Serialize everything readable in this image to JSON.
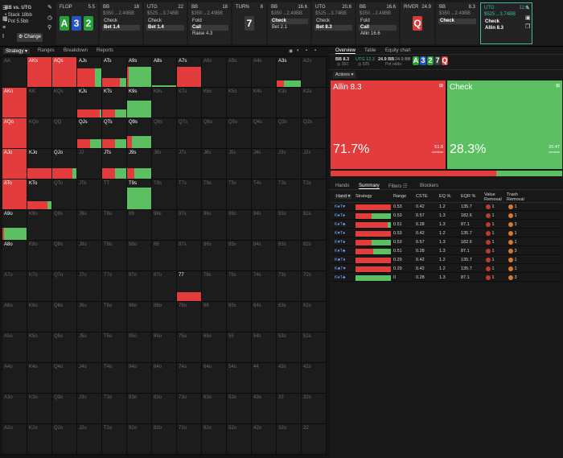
{
  "header": {
    "matchup": "BB vs. UTG",
    "stack": "• Stack 18bb",
    "pot": "• Pot 5.5bb",
    "change_label": "Change",
    "streets": [
      {
        "pos": "FLOP",
        "size": "5.5",
        "info": ""
      },
      {
        "pos": "BB",
        "size": "18",
        "info": "$350→2.49BB",
        "actions": [
          "Check",
          "Bet 1.4"
        ],
        "sel": 1
      },
      {
        "pos": "UTG",
        "size": "22",
        "info": "$525→3.74BB",
        "actions": [
          "Check",
          "Bet 1.4"
        ],
        "sel": 1
      },
      {
        "pos": "BB",
        "size": "18",
        "info": "$350→2.49BB",
        "actions": [
          "Fold",
          "Call",
          "Raise 4.3"
        ],
        "sel": 1
      },
      {
        "pos": "TURN",
        "size": "8",
        "info": ""
      },
      {
        "pos": "BB",
        "size": "16.6",
        "info": "$350→2.49BB",
        "actions": [
          "Check",
          "Bet 2.1"
        ],
        "sel": 0
      },
      {
        "pos": "UTG",
        "size": "20.6",
        "info": "$525→3.74BB",
        "actions": [
          "Check",
          "Bet 8.3"
        ],
        "sel": 1
      },
      {
        "pos": "BB",
        "size": "16.6",
        "info": "$350→2.49BB",
        "actions": [
          "Fold",
          "Call",
          "Allin 16.6"
        ],
        "sel": 1
      },
      {
        "pos": "RIVER",
        "size": "24.9",
        "info": ""
      },
      {
        "pos": "BB",
        "size": "8.3",
        "info": "$350→2.49BB",
        "actions": [
          "Check"
        ],
        "sel": 0
      },
      {
        "pos": "UTG",
        "size": "12.3",
        "info": "$525→3.74BB",
        "actions": [
          "Check",
          "Allin 8.3"
        ],
        "sel": -1
      }
    ],
    "flop_cards": [
      "A",
      "3",
      "2"
    ],
    "turn_card": "7",
    "river_card": "Q"
  },
  "left_tabs": [
    "Strategy",
    "Ranges",
    "Breakdown",
    "Reports"
  ],
  "grid": {
    "hands": [
      [
        "AA",
        "AKs",
        "AQs",
        "AJs",
        "ATs",
        "A9s",
        "A8s",
        "A7s",
        "A6s",
        "A5s",
        "A4s",
        "A3s",
        "A2s"
      ],
      [
        "AKo",
        "KK",
        "KQs",
        "KJs",
        "KTs",
        "K9s",
        "K8s",
        "K7s",
        "K6s",
        "K5s",
        "K4s",
        "K3s",
        "K2s"
      ],
      [
        "AQo",
        "KQo",
        "QQ",
        "QJs",
        "QTs",
        "Q9s",
        "Q8s",
        "Q7s",
        "Q6s",
        "Q5s",
        "Q4s",
        "Q3s",
        "Q2s"
      ],
      [
        "AJo",
        "KJo",
        "QJo",
        "JJ",
        "JTs",
        "J9s",
        "J8s",
        "J7s",
        "J6s",
        "J5s",
        "J4s",
        "J3s",
        "J2s"
      ],
      [
        "ATo",
        "KTo",
        "QTo",
        "JTo",
        "TT",
        "T9s",
        "T8s",
        "T7s",
        "T6s",
        "T5s",
        "T4s",
        "T3s",
        "T2s"
      ],
      [
        "A9o",
        "K9o",
        "Q9o",
        "J9o",
        "T9o",
        "99",
        "98s",
        "97s",
        "96s",
        "95s",
        "94s",
        "93s",
        "92s"
      ],
      [
        "A8o",
        "K8o",
        "Q8o",
        "J8o",
        "T8o",
        "98o",
        "88",
        "87s",
        "86s",
        "85s",
        "84s",
        "83s",
        "82s"
      ],
      [
        "A7o",
        "K7o",
        "Q7o",
        "J7o",
        "T7o",
        "97o",
        "87o",
        "77",
        "76s",
        "75s",
        "74s",
        "73s",
        "72s"
      ],
      [
        "A6o",
        "K6o",
        "Q6o",
        "J6o",
        "T6o",
        "96o",
        "86o",
        "76o",
        "66",
        "65s",
        "64s",
        "63s",
        "62s"
      ],
      [
        "A5o",
        "K5o",
        "Q5o",
        "J5o",
        "T5o",
        "95o",
        "85o",
        "75o",
        "65o",
        "55",
        "54s",
        "53s",
        "52s"
      ],
      [
        "A4o",
        "K4o",
        "Q4o",
        "J4o",
        "T4o",
        "94o",
        "84o",
        "74o",
        "64o",
        "54o",
        "44",
        "43s",
        "42s"
      ],
      [
        "A3o",
        "K3o",
        "Q3o",
        "J3o",
        "T3o",
        "93o",
        "83o",
        "73o",
        "63o",
        "53o",
        "43o",
        "33",
        "32s"
      ],
      [
        "A2o",
        "K2o",
        "Q2o",
        "J2o",
        "T2o",
        "92o",
        "82o",
        "72o",
        "62o",
        "52o",
        "42o",
        "32o",
        "22"
      ]
    ],
    "live": [
      "AKs",
      "AQs",
      "AJs",
      "ATs",
      "A9s",
      "A8s",
      "A7s",
      "A3s",
      "AKo",
      "KJs",
      "KTs",
      "K9s",
      "AQo",
      "QJs",
      "QTs",
      "Q9s",
      "AJo",
      "KJo",
      "QJo",
      "JTs",
      "J9s",
      "ATo",
      "KTo",
      "T9s",
      "A9o",
      "A8o",
      "77"
    ],
    "strategy": {
      "AKs": [
        1,
        0,
        1
      ],
      "AQs": [
        1,
        0,
        1
      ],
      "AJs": [
        0.72,
        0.28,
        0.6
      ],
      "ATs": [
        0.72,
        0.28,
        0.3
      ],
      "A9s": [
        0.05,
        0.95,
        0.65
      ],
      "A8s": [
        0,
        1,
        0.05
      ],
      "A7s": [
        1,
        0,
        0.65
      ],
      "A3s": [
        0.3,
        0.7,
        0.2
      ],
      "AKo": [
        1,
        0,
        1
      ],
      "KJs": [
        0.9,
        0.1,
        0.25
      ],
      "KTs": [
        0.5,
        0.5,
        0.25
      ],
      "K9s": [
        0,
        1,
        0.55
      ],
      "AQo": [
        1,
        0,
        1
      ],
      "QJs": [
        0.5,
        0.5,
        0.3
      ],
      "QTs": [
        0.5,
        0.5,
        0.3
      ],
      "Q9s": [
        0.2,
        0.8,
        0.4
      ],
      "AJo": [
        1,
        0,
        1
      ],
      "KJo": [
        1,
        0,
        0.35
      ],
      "QJo": [
        0.8,
        0.2,
        0.35
      ],
      "JTs": [
        0.5,
        0.5,
        0.35
      ],
      "J9s": [
        0.3,
        0.7,
        0.35
      ],
      "ATo": [
        1,
        0,
        1
      ],
      "KTo": [
        0.8,
        0.2,
        0.25
      ],
      "T9s": [
        0,
        1,
        0.7
      ],
      "A9o": [
        0.05,
        0.95,
        0.4
      ],
      "A8o": [
        0,
        0,
        0
      ],
      "77": [
        1,
        0,
        0.3
      ]
    }
  },
  "right": {
    "tabs": [
      "Overview",
      "Table",
      "Equity chart"
    ],
    "pot_bb": "BB 8.3",
    "pot_sub": "◎ 350",
    "utg": "UTG 12.3",
    "utg_sub": "◎ 525",
    "pot_total": "24.9 BB",
    "pot_total2": "24.9 BB",
    "pot_odds": "Pot odds:",
    "board": [
      "A",
      "3",
      "2",
      "7",
      "Q"
    ],
    "actions_label": "Actions",
    "allin_label": "Allin 8.3",
    "allin_pct": "71.7%",
    "allin_combos": "51.9",
    "check_label": "Check",
    "check_pct": "28.3%",
    "check_combos": "20.47",
    "combos_word": "combos",
    "sub_tabs": [
      "Hands",
      "Summary",
      "Filters",
      "Blockers"
    ],
    "columns": [
      "Hand",
      "Strategy",
      "Range",
      "CSTE",
      "EQ %",
      "EQR %",
      "Value Removal",
      "Trash Removal"
    ],
    "rows": [
      {
        "hand": "K♠T♥",
        "allin": 1.0,
        "range": "0.53",
        "cste": "0.42",
        "eq": "1.2",
        "eqr": "135.7",
        "vr": "1",
        "tr": "1"
      },
      {
        "hand": "K♠T♠",
        "allin": 0.45,
        "range": "0.53",
        "cste": "0.57",
        "eq": "1.3",
        "eqr": "182.6",
        "vr": "1",
        "tr": "1"
      },
      {
        "hand": "K♦T♣",
        "allin": 0.9,
        "range": "0.51",
        "cste": "0.28",
        "eq": "1.3",
        "eqr": "87.1",
        "vr": "1",
        "tr": "3"
      },
      {
        "hand": "K♥T♦",
        "allin": 1.0,
        "range": "0.53",
        "cste": "0.42",
        "eq": "1.2",
        "eqr": "135.7",
        "vr": "1",
        "tr": "1"
      },
      {
        "hand": "K♥T♠",
        "allin": 0.45,
        "range": "0.53",
        "cste": "0.57",
        "eq": "1.3",
        "eqr": "182.6",
        "vr": "1",
        "tr": "1"
      },
      {
        "hand": "K♦T♣",
        "allin": 0.5,
        "range": "0.51",
        "cste": "0.28",
        "eq": "1.3",
        "eqr": "87.1",
        "vr": "1",
        "tr": "3"
      },
      {
        "hand": "K♣T♦",
        "allin": 1.0,
        "range": "0.29",
        "cste": "0.42",
        "eq": "1.2",
        "eqr": "135.7",
        "vr": "1",
        "tr": "1"
      },
      {
        "hand": "K♣T♥",
        "allin": 1.0,
        "range": "0.29",
        "cste": "0.42",
        "eq": "1.2",
        "eqr": "135.7",
        "vr": "1",
        "tr": "1"
      },
      {
        "hand": "K♦T♣",
        "allin": 0.0,
        "range": "0",
        "cste": "0.28",
        "eq": "1.3",
        "eqr": "87.1",
        "vr": "1",
        "tr": "3"
      }
    ]
  },
  "colors": {
    "red": "#e23c3c",
    "green": "#5cbf61",
    "darkred": "#9b2626",
    "card_green": "#27a03a",
    "card_blue": "#2553c6",
    "card_red": "#d83a3a"
  }
}
